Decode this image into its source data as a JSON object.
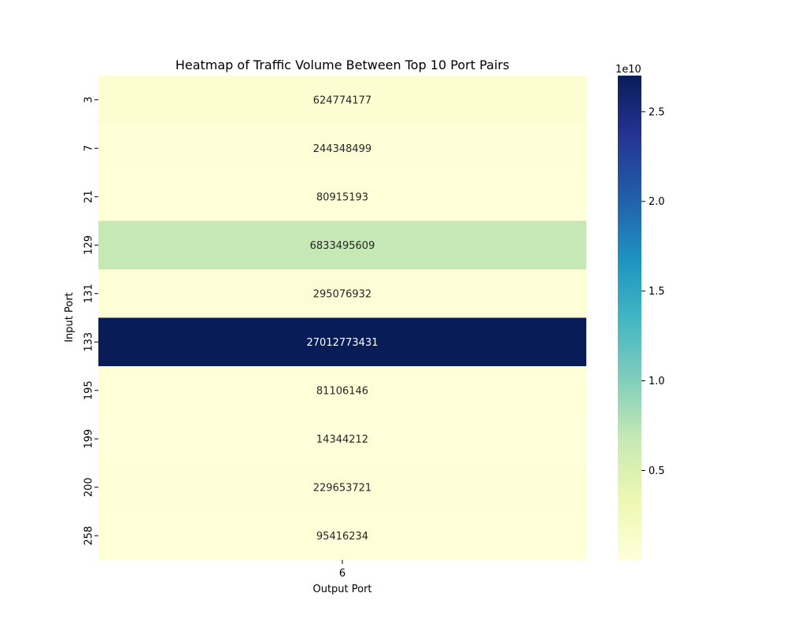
{
  "chart_data": {
    "type": "heatmap",
    "title": "Heatmap of Traffic Volume Between Top 10 Port Pairs",
    "xlabel": "Output Port",
    "ylabel": "Input Port",
    "x_categories": [
      "6"
    ],
    "y_categories": [
      "3",
      "7",
      "21",
      "129",
      "131",
      "133",
      "195",
      "199",
      "200",
      "258"
    ],
    "values": [
      [
        624774177
      ],
      [
        244348499
      ],
      [
        80915193
      ],
      [
        6833495609
      ],
      [
        295076932
      ],
      [
        27012773431
      ],
      [
        81106146
      ],
      [
        14344212
      ],
      [
        229653721
      ],
      [
        95416234
      ]
    ],
    "annotations": [
      "624774177",
      "244348499",
      "80915193",
      "6833495609",
      "295076932",
      "27012773431",
      "81106146",
      "14344212",
      "229653721",
      "95416234"
    ],
    "colormap": "YlGnBu",
    "colorbar": {
      "vmin": 14344212,
      "vmax": 27012773431,
      "ticks": [
        0.5,
        1.0,
        1.5,
        2.0,
        2.5
      ],
      "tick_labels": [
        "0.5",
        "1.0",
        "1.5",
        "2.0",
        "2.5"
      ],
      "multiplier_label": "1e10"
    },
    "colors": {
      "dark_text": "#262626",
      "light_text": "#ffffff"
    }
  }
}
